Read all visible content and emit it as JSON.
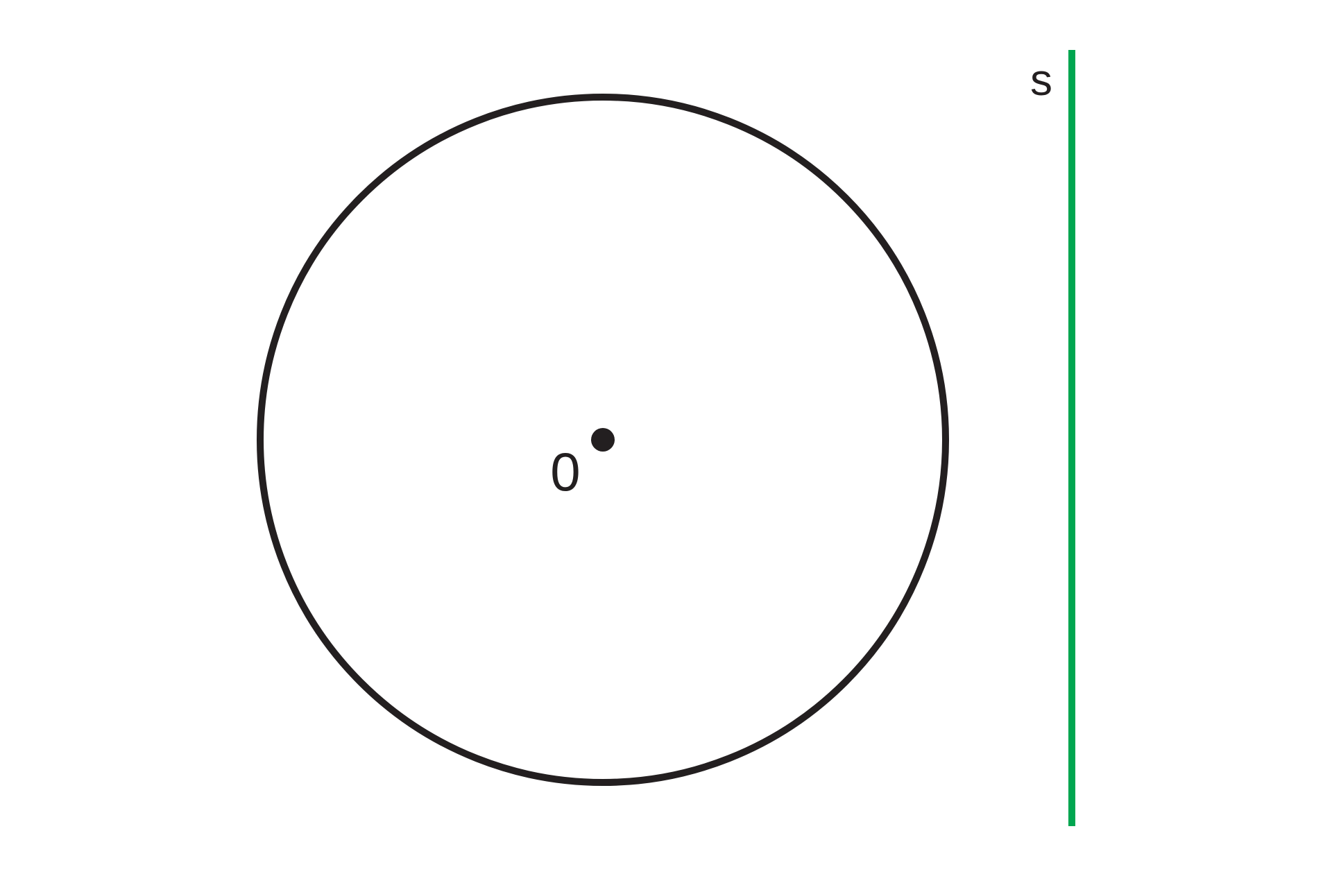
{
  "diagram": {
    "center_label": "0",
    "line_label": "s",
    "colors": {
      "circle_stroke": "#231f20",
      "center_point": "#231f20",
      "line_stroke": "#00a650",
      "label_text": "#231f20",
      "background": "#ffffff"
    }
  }
}
